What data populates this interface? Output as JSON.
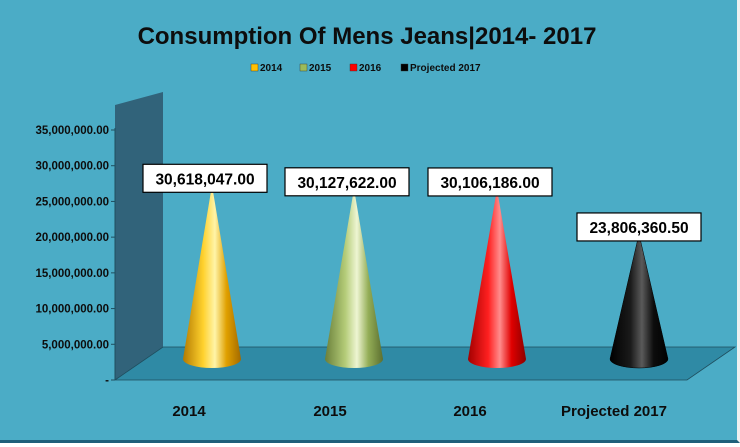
{
  "chart_data": {
    "type": "bar",
    "style": "3d-cone",
    "title": "Consumption Of Mens Jeans|2014- 2017",
    "xlabel": "",
    "ylabel": "",
    "categories": [
      "2014",
      "2015",
      "2016",
      "Projected 2017"
    ],
    "values": [
      30618047.0,
      30127622.0,
      30106186.0,
      23806360.5
    ],
    "data_labels": [
      "30,618,047.00",
      "30,127,622.00",
      "30,106,186.00",
      "23,806,360.50"
    ],
    "series": [
      {
        "name": "2014",
        "color": "#ffc000"
      },
      {
        "name": "2015",
        "color": "#9bbb59"
      },
      {
        "name": "2016",
        "color": "#ff0000"
      },
      {
        "name": "Projected 2017",
        "color": "#000000"
      }
    ],
    "y_ticks": [
      "35,000,000.00",
      "30,000,000.00",
      "25,000,000.00",
      "20,000,000.00",
      "15,000,000.00",
      "10,000,000.00",
      "5,000,000.00",
      "-"
    ],
    "ylim": [
      0,
      35000000
    ],
    "grid": false,
    "legend_position": "top",
    "colors": {
      "background": "#4bacc6",
      "wall": "#31637a",
      "floor": "#2f8aa5"
    }
  }
}
